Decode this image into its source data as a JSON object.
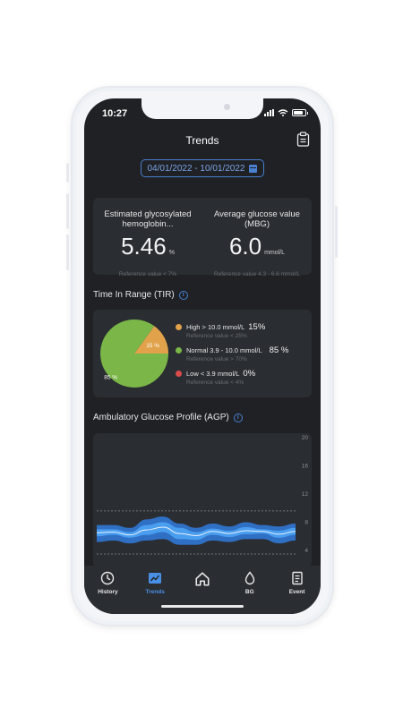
{
  "status_bar": {
    "time": "10:27"
  },
  "header": {
    "title": "Trends",
    "report_icon": "clipboard-icon"
  },
  "date_range": {
    "label": "04/01/2022 - 10/01/2022",
    "icon": "calendar-icon"
  },
  "glucose_summary": {
    "hba1c": {
      "label": "Estimated glycosylated hemoglobin...",
      "value": "5.46",
      "unit": "%",
      "reference": "Reference value < 7%"
    },
    "mbg": {
      "label": "Average glucose value (MBG)",
      "value": "6.0",
      "unit": "mmol/L",
      "reference": "Reference value 4.3 - 6.6 mmol/L"
    }
  },
  "tir": {
    "title": "Time In Range (TIR)",
    "info_icon": "info-icon",
    "slices": [
      {
        "label": "High > 10.0 mmol/L",
        "percent": 15,
        "display": "15%",
        "slice_label": "15 %",
        "reference": "Reference value < 25%",
        "color": "#e2a24b"
      },
      {
        "label": "Normal 3.9 - 10.0 mmol/L",
        "percent": 85,
        "display": "85 %",
        "slice_label": "85 %",
        "reference": "Reference value > 70%",
        "color": "#7ab648"
      },
      {
        "label": "Low < 3.9 mmol/L",
        "percent": 0,
        "display": "0%",
        "slice_label": "",
        "reference": "Reference value < 4%",
        "color": "#d94b4b"
      }
    ]
  },
  "agp": {
    "title": "Ambulatory Glucose Profile (AGP)",
    "info_icon": "info-icon",
    "y_ticks": [
      "20",
      "16",
      "12",
      "8",
      "4"
    ]
  },
  "chart_data": {
    "type": "area",
    "title": "Ambulatory Glucose Profile (AGP)",
    "y_ticks": [
      20,
      16,
      12,
      8,
      4
    ],
    "ylim": [
      2,
      21
    ],
    "reference_lines": [
      10,
      3.9
    ],
    "x": [
      0,
      2,
      4,
      6,
      8,
      10,
      12,
      14,
      16,
      18,
      20,
      22,
      24
    ],
    "series": [
      {
        "band": "outer",
        "low": [
          5.6,
          5.8,
          5.4,
          5.8,
          6.0,
          5.2,
          5.2,
          5.8,
          5.6,
          6.0,
          6.0,
          5.4,
          5.8
        ],
        "high": [
          8.0,
          8.0,
          7.6,
          8.8,
          9.2,
          8.2,
          7.6,
          8.2,
          7.8,
          8.4,
          8.0,
          7.8,
          8.2
        ]
      },
      {
        "band": "inner",
        "low": [
          6.4,
          6.6,
          6.2,
          6.6,
          7.0,
          6.0,
          5.9,
          6.6,
          6.3,
          6.7,
          6.8,
          6.2,
          6.6
        ],
        "high": [
          7.4,
          7.4,
          7.0,
          8.0,
          8.4,
          7.6,
          7.0,
          7.5,
          7.2,
          7.7,
          7.4,
          7.2,
          7.6
        ]
      },
      {
        "band": "median",
        "values": [
          6.9,
          7.0,
          6.6,
          7.3,
          7.7,
          6.8,
          6.5,
          7.1,
          6.8,
          7.2,
          7.1,
          6.7,
          7.1
        ]
      }
    ],
    "colors": {
      "outer": "#2f6fc4",
      "inner": "#4a9ef0",
      "median": "#e8f1fb"
    }
  },
  "nav": {
    "items": [
      {
        "label": "History",
        "icon": "clock-icon",
        "active": false
      },
      {
        "label": "Trends",
        "icon": "trend-chart-icon",
        "active": true
      },
      {
        "label": "",
        "icon": "home-icon",
        "active": false
      },
      {
        "label": "BG",
        "icon": "drop-icon",
        "active": false
      },
      {
        "label": "Event",
        "icon": "document-icon",
        "active": false
      }
    ]
  },
  "colors": {
    "accent": "#4a8fe6",
    "background": "#1f2124",
    "card": "#2a2d31"
  }
}
